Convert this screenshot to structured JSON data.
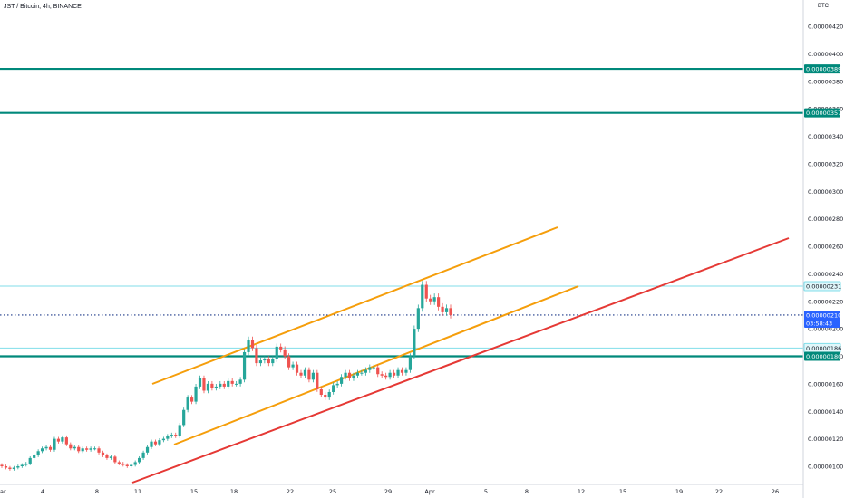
{
  "header": {
    "title": "JST / Bitcoin, 4h, BINANCE",
    "currency": "BTC"
  },
  "colors": {
    "up": "#26a69a",
    "down": "#ef5350",
    "resistance": "#00897b",
    "light_line": "#80deea",
    "channel": "#f59e0b",
    "support": "#e53935",
    "price_line": "#1e3a8a",
    "price_tag": "#2962ff"
  },
  "chart_data": {
    "type": "candlestick",
    "symbol": "JST / Bitcoin",
    "interval": "4h",
    "exchange": "BINANCE",
    "y_tick_labels": [
      "0.00000100",
      "0.00000120",
      "0.00000140",
      "0.00000160",
      "0.00000180",
      "0.00000200",
      "0.00000220",
      "0.00000240",
      "0.00000260",
      "0.00000280",
      "0.00000300",
      "0.00000320",
      "0.00000340",
      "0.00000360",
      "0.00000380",
      "0.00000400",
      "0.00000420"
    ],
    "ylim": [
      9.7e-07,
      4.31e-06
    ],
    "x_tick_labels": [
      "ar",
      "4",
      "8",
      "11",
      "15",
      "18",
      "22",
      "25",
      "29",
      "Apr",
      "5",
      "8",
      "12",
      "15",
      "19",
      "22",
      "26"
    ],
    "candles_close": [
      1e-06,
      9.9e-07,
      9.8e-07,
      9.9e-07,
      1e-06,
      1.01e-06,
      1.02e-06,
      1.06e-06,
      1.08e-06,
      1.11e-06,
      1.13e-06,
      1.14e-06,
      1.12e-06,
      1.2e-06,
      1.18e-06,
      1.21e-06,
      1.16e-06,
      1.13e-06,
      1.14e-06,
      1.11e-06,
      1.13e-06,
      1.12e-06,
      1.13e-06,
      1.13e-06,
      1.1e-06,
      1.08e-06,
      1.06e-06,
      1.07e-06,
      1.03e-06,
      1.02e-06,
      1.01e-06,
      1e-06,
      1.01e-06,
      1.03e-06,
      1.06e-06,
      1.1e-06,
      1.14e-06,
      1.18e-06,
      1.16e-06,
      1.19e-06,
      1.2e-06,
      1.22e-06,
      1.23e-06,
      1.22e-06,
      1.3e-06,
      1.41e-06,
      1.5e-06,
      1.47e-06,
      1.58e-06,
      1.64e-06,
      1.55e-06,
      1.6e-06,
      1.57e-06,
      1.58e-06,
      1.6e-06,
      1.58e-06,
      1.62e-06,
      1.6e-06,
      1.6e-06,
      1.63e-06,
      1.83e-06,
      1.92e-06,
      1.86e-06,
      1.75e-06,
      1.77e-06,
      1.78e-06,
      1.75e-06,
      1.78e-06,
      1.87e-06,
      1.85e-06,
      1.8e-06,
      1.72e-06,
      1.74e-06,
      1.68e-06,
      1.66e-06,
      1.7e-06,
      1.63e-06,
      1.68e-06,
      1.56e-06,
      1.52e-06,
      1.5e-06,
      1.54e-06,
      1.59e-06,
      1.6e-06,
      1.65e-06,
      1.68e-06,
      1.64e-06,
      1.66e-06,
      1.68e-06,
      1.68e-06,
      1.7e-06,
      1.72e-06,
      1.72e-06,
      1.67e-06,
      1.66e-06,
      1.65e-06,
      1.68e-06,
      1.66e-06,
      1.7e-06,
      1.68e-06,
      1.7e-06,
      1.8e-06,
      2e-06,
      2.15e-06,
      2.32e-06,
      2.22e-06,
      2.2e-06,
      2.23e-06,
      2.16e-06,
      2.12e-06,
      2.15e-06,
      2.1e-06
    ],
    "horizontal_levels": [
      {
        "value": 3.89e-06,
        "label": "0.00000389",
        "style": "resistance"
      },
      {
        "value": 3.57e-06,
        "label": "0.00000357",
        "style": "resistance"
      },
      {
        "value": 2.31e-06,
        "label": "0.00000231",
        "style": "light"
      },
      {
        "value": 1.86e-06,
        "label": "0.00000186",
        "style": "light"
      },
      {
        "value": 1.8e-06,
        "label": "0.00000180",
        "style": "resistance"
      }
    ],
    "current_price": {
      "label": "0.00000210",
      "countdown": "03:58:43",
      "value": 2.1e-06
    }
  }
}
